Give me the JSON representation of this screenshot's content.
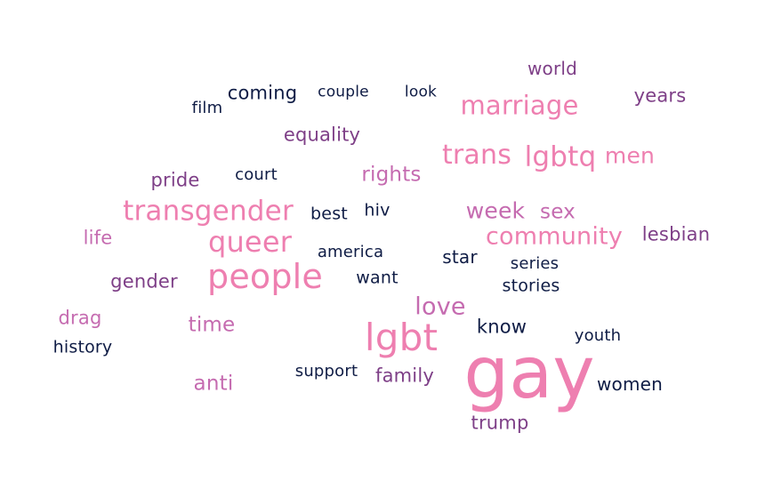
{
  "colors": {
    "navy": "#0f1c45",
    "purple": "#7e3f87",
    "pink": "#ee7fb0",
    "mauve": "#c56bb0"
  },
  "words": [
    {
      "id": "world",
      "text": "world",
      "color": "#7e3f87"
    },
    {
      "id": "years",
      "text": "years",
      "color": "#7e3f87"
    },
    {
      "id": "coming",
      "text": "coming",
      "color": "#0f1c45"
    },
    {
      "id": "couple",
      "text": "couple",
      "color": "#0f1c45"
    },
    {
      "id": "look",
      "text": "look",
      "color": "#0f1c45"
    },
    {
      "id": "film",
      "text": "film",
      "color": "#0f1c45"
    },
    {
      "id": "marriage",
      "text": "marriage",
      "color": "#ee7fb0"
    },
    {
      "id": "equality",
      "text": "equality",
      "color": "#7e3f87"
    },
    {
      "id": "trans",
      "text": "trans",
      "color": "#ee7fb0"
    },
    {
      "id": "lgbtq",
      "text": "lgbtq",
      "color": "#ee7fb0"
    },
    {
      "id": "men",
      "text": "men",
      "color": "#ee7fb0"
    },
    {
      "id": "pride",
      "text": "pride",
      "color": "#7e3f87"
    },
    {
      "id": "court",
      "text": "court",
      "color": "#0f1c45"
    },
    {
      "id": "rights",
      "text": "rights",
      "color": "#c56bb0"
    },
    {
      "id": "transgender",
      "text": "transgender",
      "color": "#ee7fb0"
    },
    {
      "id": "best",
      "text": "best",
      "color": "#0f1c45"
    },
    {
      "id": "hiv",
      "text": "hiv",
      "color": "#0f1c45"
    },
    {
      "id": "week",
      "text": "week",
      "color": "#c56bb0"
    },
    {
      "id": "sex",
      "text": "sex",
      "color": "#c56bb0"
    },
    {
      "id": "life",
      "text": "life",
      "color": "#c56bb0"
    },
    {
      "id": "queer",
      "text": "queer",
      "color": "#ee7fb0"
    },
    {
      "id": "community",
      "text": "community",
      "color": "#ee7fb0"
    },
    {
      "id": "lesbian",
      "text": "lesbian",
      "color": "#7e3f87"
    },
    {
      "id": "america",
      "text": "america",
      "color": "#0f1c45"
    },
    {
      "id": "star",
      "text": "star",
      "color": "#0f1c45"
    },
    {
      "id": "series",
      "text": "series",
      "color": "#0f1c45"
    },
    {
      "id": "people",
      "text": "people",
      "color": "#ee7fb0"
    },
    {
      "id": "gender",
      "text": "gender",
      "color": "#7e3f87"
    },
    {
      "id": "want",
      "text": "want",
      "color": "#0f1c45"
    },
    {
      "id": "stories",
      "text": "stories",
      "color": "#0f1c45"
    },
    {
      "id": "love",
      "text": "love",
      "color": "#c56bb0"
    },
    {
      "id": "drag",
      "text": "drag",
      "color": "#c56bb0"
    },
    {
      "id": "time",
      "text": "time",
      "color": "#c56bb0"
    },
    {
      "id": "know",
      "text": "know",
      "color": "#0f1c45"
    },
    {
      "id": "lgbt",
      "text": "lgbt",
      "color": "#ee7fb0"
    },
    {
      "id": "youth",
      "text": "youth",
      "color": "#0f1c45"
    },
    {
      "id": "history",
      "text": "history",
      "color": "#0f1c45"
    },
    {
      "id": "gay",
      "text": "gay",
      "color": "#ee7fb0"
    },
    {
      "id": "support",
      "text": "support",
      "color": "#0f1c45"
    },
    {
      "id": "family",
      "text": "family",
      "color": "#7e3f87"
    },
    {
      "id": "anti",
      "text": "anti",
      "color": "#c56bb0"
    },
    {
      "id": "women",
      "text": "women",
      "color": "#0f1c45"
    },
    {
      "id": "trump",
      "text": "trump",
      "color": "#7e3f87"
    }
  ]
}
